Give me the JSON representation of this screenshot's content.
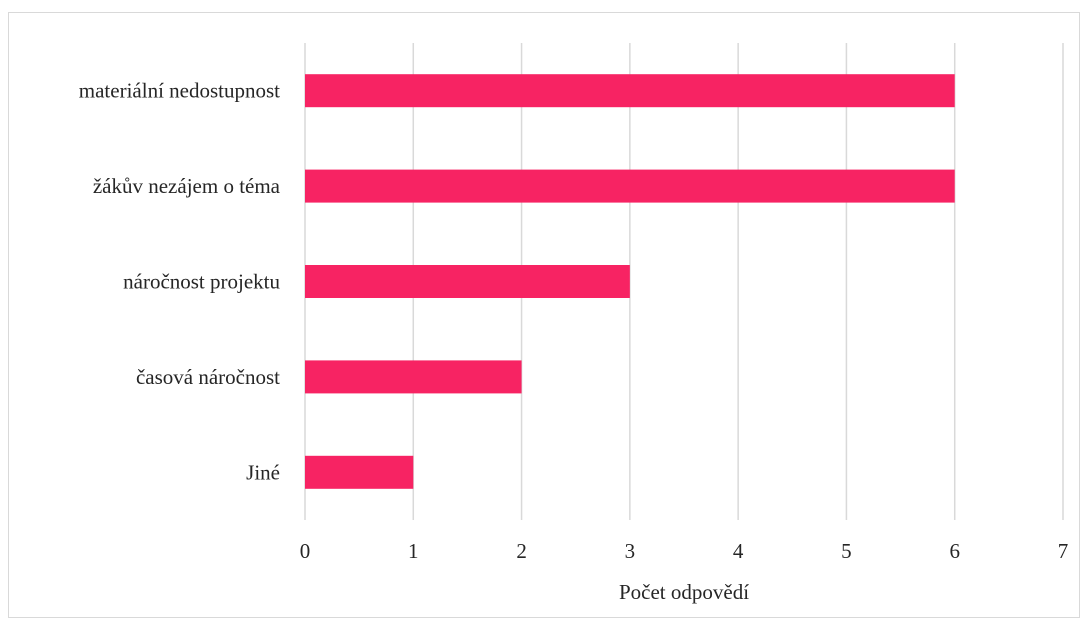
{
  "chart_data": {
    "type": "bar",
    "orientation": "horizontal",
    "categories": [
      "materiální nedostupnost",
      "žákův nezájem o téma",
      "náročnost projektu",
      "časová náročnost",
      "Jiné"
    ],
    "values": [
      6,
      6,
      3,
      2,
      1
    ],
    "xlabel": "Počet odpovědí",
    "ylabel": "",
    "xlim": [
      0,
      7
    ],
    "x_ticks": [
      "0",
      "1",
      "2",
      "3",
      "4",
      "5",
      "6",
      "7"
    ],
    "grid": "vertical",
    "legend": "none",
    "bar_color": "#f72363",
    "grid_color": "#d9d9d9"
  }
}
